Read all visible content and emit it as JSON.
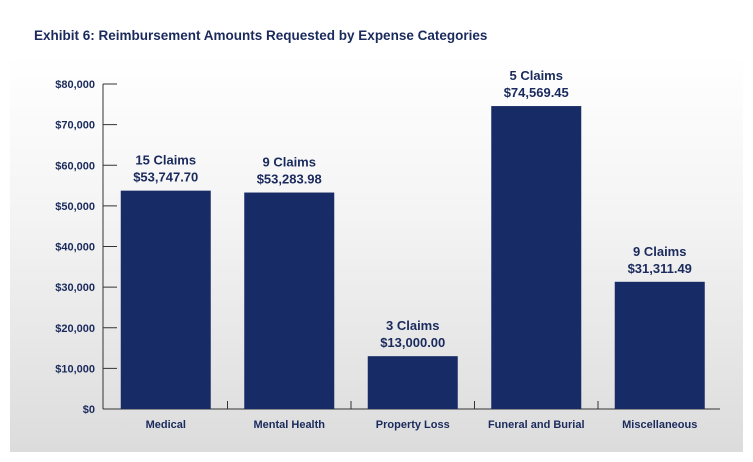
{
  "colors": {
    "bar": "#172b66",
    "text": "#1a2a5c",
    "axis": "#333333"
  },
  "chart_data": {
    "type": "bar",
    "title": "Exhibit 6: Reimbursement Amounts Requested by Expense Categories",
    "xlabel": "",
    "ylabel": "",
    "ylim": [
      0,
      80000
    ],
    "yticks": [
      0,
      10000,
      20000,
      30000,
      40000,
      50000,
      60000,
      70000,
      80000
    ],
    "ytick_labels": [
      "$0",
      "$10,000",
      "$20,000",
      "$30,000",
      "$40,000",
      "$50,000",
      "$60,000",
      "$70,000",
      "$80,000"
    ],
    "grid": false,
    "categories": [
      "Medical",
      "Mental Health",
      "Property Loss",
      "Funeral and Burial",
      "Miscellaneous"
    ],
    "values": [
      53747.7,
      53283.98,
      13000.0,
      74569.45,
      31311.49
    ],
    "claims_labels": [
      "15 Claims",
      "9 Claims",
      "3 Claims",
      "5 Claims",
      "9 Claims"
    ],
    "value_labels": [
      "$53,747.70",
      "$53,283.98",
      "$13,000.00",
      "$74,569.45",
      "$31,311.49"
    ]
  }
}
